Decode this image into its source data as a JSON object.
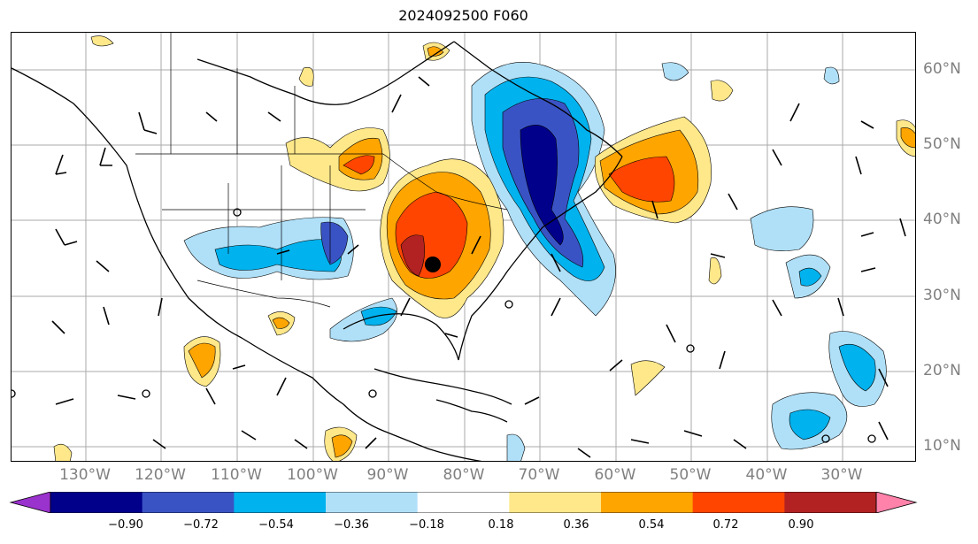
{
  "title": "2024092500 F060",
  "lon_labels": [
    "130°W",
    "120°W",
    "110°W",
    "100°W",
    "90°W",
    "80°W",
    "70°W",
    "60°W",
    "50°W",
    "40°W",
    "30°W"
  ],
  "lat_labels": [
    "60°N",
    "50°N",
    "40°N",
    "30°N",
    "20°N",
    "10°N"
  ],
  "colorbar": {
    "ticks": [
      "−0.90",
      "−0.72",
      "−0.54",
      "−0.36",
      "−0.18",
      "0.18",
      "0.36",
      "0.54",
      "0.72",
      "0.90"
    ],
    "colors": [
      "#9a32cd",
      "#00008b",
      "#3a53c4",
      "#00b2ee",
      "#b0e0f8",
      "#ffffff",
      "#ffe88a",
      "#ffa500",
      "#ff4500",
      "#b22222",
      "#ff82ab"
    ]
  },
  "colors": {
    "negative_strong": "#00008b",
    "negative_mid": "#3a53c4",
    "negative_light": "#00b2ee",
    "negative_pale": "#b0e0f8",
    "positive_pale": "#ffe88a",
    "positive_mid": "#ffa500",
    "positive_strong": "#ff4500",
    "positive_max": "#b22222"
  },
  "icons": [
    "wind-barb-icon",
    "storm-center-dot-icon",
    "open-circle-icon"
  ]
}
